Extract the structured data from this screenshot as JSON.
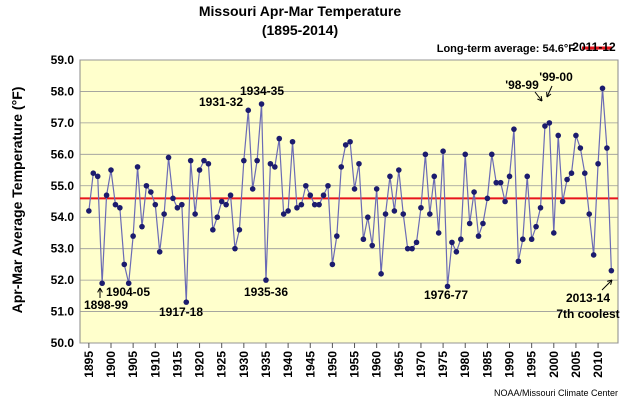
{
  "chart_data": {
    "type": "line",
    "title": "Missouri Apr-Mar Temperature",
    "subtitle": "(1895-2014)",
    "y_label": "Apr-Mar Average Temperature (°F)",
    "source": "NOAA/Missouri Climate Center",
    "reference": {
      "label": "Long-term average: 54.6°F",
      "value": 54.6,
      "color": "#e8141c"
    },
    "annotations": [
      "1898-99",
      "1904-05",
      "1917-18",
      "1931-32",
      "1934-35",
      "1935-36",
      "1976-77",
      "'98-99",
      "'99-00",
      "2011-12",
      "2013-14",
      "7th coolest"
    ],
    "x": [
      1895,
      1896,
      1897,
      1898,
      1899,
      1900,
      1901,
      1902,
      1903,
      1904,
      1905,
      1906,
      1907,
      1908,
      1909,
      1910,
      1911,
      1912,
      1913,
      1914,
      1915,
      1916,
      1917,
      1918,
      1919,
      1920,
      1921,
      1922,
      1923,
      1924,
      1925,
      1926,
      1927,
      1928,
      1929,
      1930,
      1931,
      1932,
      1933,
      1934,
      1935,
      1936,
      1937,
      1938,
      1939,
      1940,
      1941,
      1942,
      1943,
      1944,
      1945,
      1946,
      1947,
      1948,
      1949,
      1950,
      1951,
      1952,
      1953,
      1954,
      1955,
      1956,
      1957,
      1958,
      1959,
      1960,
      1961,
      1962,
      1963,
      1964,
      1965,
      1966,
      1967,
      1968,
      1969,
      1970,
      1971,
      1972,
      1973,
      1974,
      1975,
      1976,
      1977,
      1978,
      1979,
      1980,
      1981,
      1982,
      1983,
      1984,
      1985,
      1986,
      1987,
      1988,
      1989,
      1990,
      1991,
      1992,
      1993,
      1994,
      1995,
      1996,
      1997,
      1998,
      1999,
      2000,
      2001,
      2002,
      2003,
      2004,
      2005,
      2006,
      2007,
      2008,
      2009,
      2010,
      2011,
      2012,
      2013
    ],
    "series": [
      {
        "name": "Apr-Mar Temperature",
        "color": "#6b6bb5",
        "marker_color": "#1c1c6e",
        "values": [
          54.2,
          55.4,
          55.3,
          51.9,
          54.7,
          55.5,
          54.4,
          54.3,
          52.5,
          51.9,
          53.4,
          55.6,
          53.7,
          55.0,
          54.8,
          54.4,
          52.9,
          54.1,
          55.9,
          54.6,
          54.3,
          54.4,
          51.3,
          55.8,
          54.1,
          55.5,
          55.8,
          55.7,
          53.6,
          54.0,
          54.5,
          54.4,
          54.7,
          53.0,
          53.6,
          55.8,
          57.4,
          54.9,
          55.8,
          57.6,
          52.0,
          55.7,
          55.6,
          56.5,
          54.1,
          54.2,
          56.4,
          54.3,
          54.4,
          55.0,
          54.7,
          54.4,
          54.4,
          54.7,
          55.0,
          52.5,
          53.4,
          55.6,
          56.3,
          56.4,
          54.9,
          55.7,
          53.3,
          54.0,
          53.1,
          54.9,
          52.2,
          54.1,
          55.3,
          54.2,
          55.5,
          54.1,
          53.0,
          53.0,
          53.2,
          54.3,
          56.0,
          54.1,
          55.3,
          53.5,
          56.1,
          51.8,
          53.2,
          52.9,
          53.3,
          56.0,
          53.8,
          54.8,
          53.4,
          53.8,
          54.6,
          56.0,
          55.1,
          55.1,
          54.5,
          55.3,
          56.8,
          52.6,
          53.3,
          55.3,
          53.3,
          53.7,
          54.3,
          56.9,
          57.0,
          53.5,
          56.6,
          54.5,
          55.2,
          55.4,
          56.6,
          56.2,
          55.4,
          54.1,
          52.8,
          55.7,
          58.1,
          56.2,
          52.3
        ]
      }
    ],
    "xlim": [
      1893,
      2014.5
    ],
    "xticks": [
      1895,
      1900,
      1905,
      1910,
      1915,
      1920,
      1925,
      1930,
      1935,
      1940,
      1945,
      1950,
      1955,
      1960,
      1965,
      1970,
      1975,
      1980,
      1985,
      1990,
      1995,
      2000,
      2005,
      2010
    ],
    "ylim": [
      50,
      59
    ],
    "yticks": [
      {
        "value": 50,
        "label": "50.0"
      },
      {
        "value": 51,
        "label": "51.0"
      },
      {
        "value": 52,
        "label": "52.0"
      },
      {
        "value": 53,
        "label": "53.0"
      },
      {
        "value": 54,
        "label": "54.0"
      },
      {
        "value": 55,
        "label": "55.0"
      },
      {
        "value": 56,
        "label": "56.0"
      },
      {
        "value": 57,
        "label": "57.0"
      },
      {
        "value": 58,
        "label": "58.0"
      },
      {
        "value": 59,
        "label": "59.0"
      }
    ],
    "grid": true,
    "background": "#ffffcc",
    "legend": "top-right"
  }
}
